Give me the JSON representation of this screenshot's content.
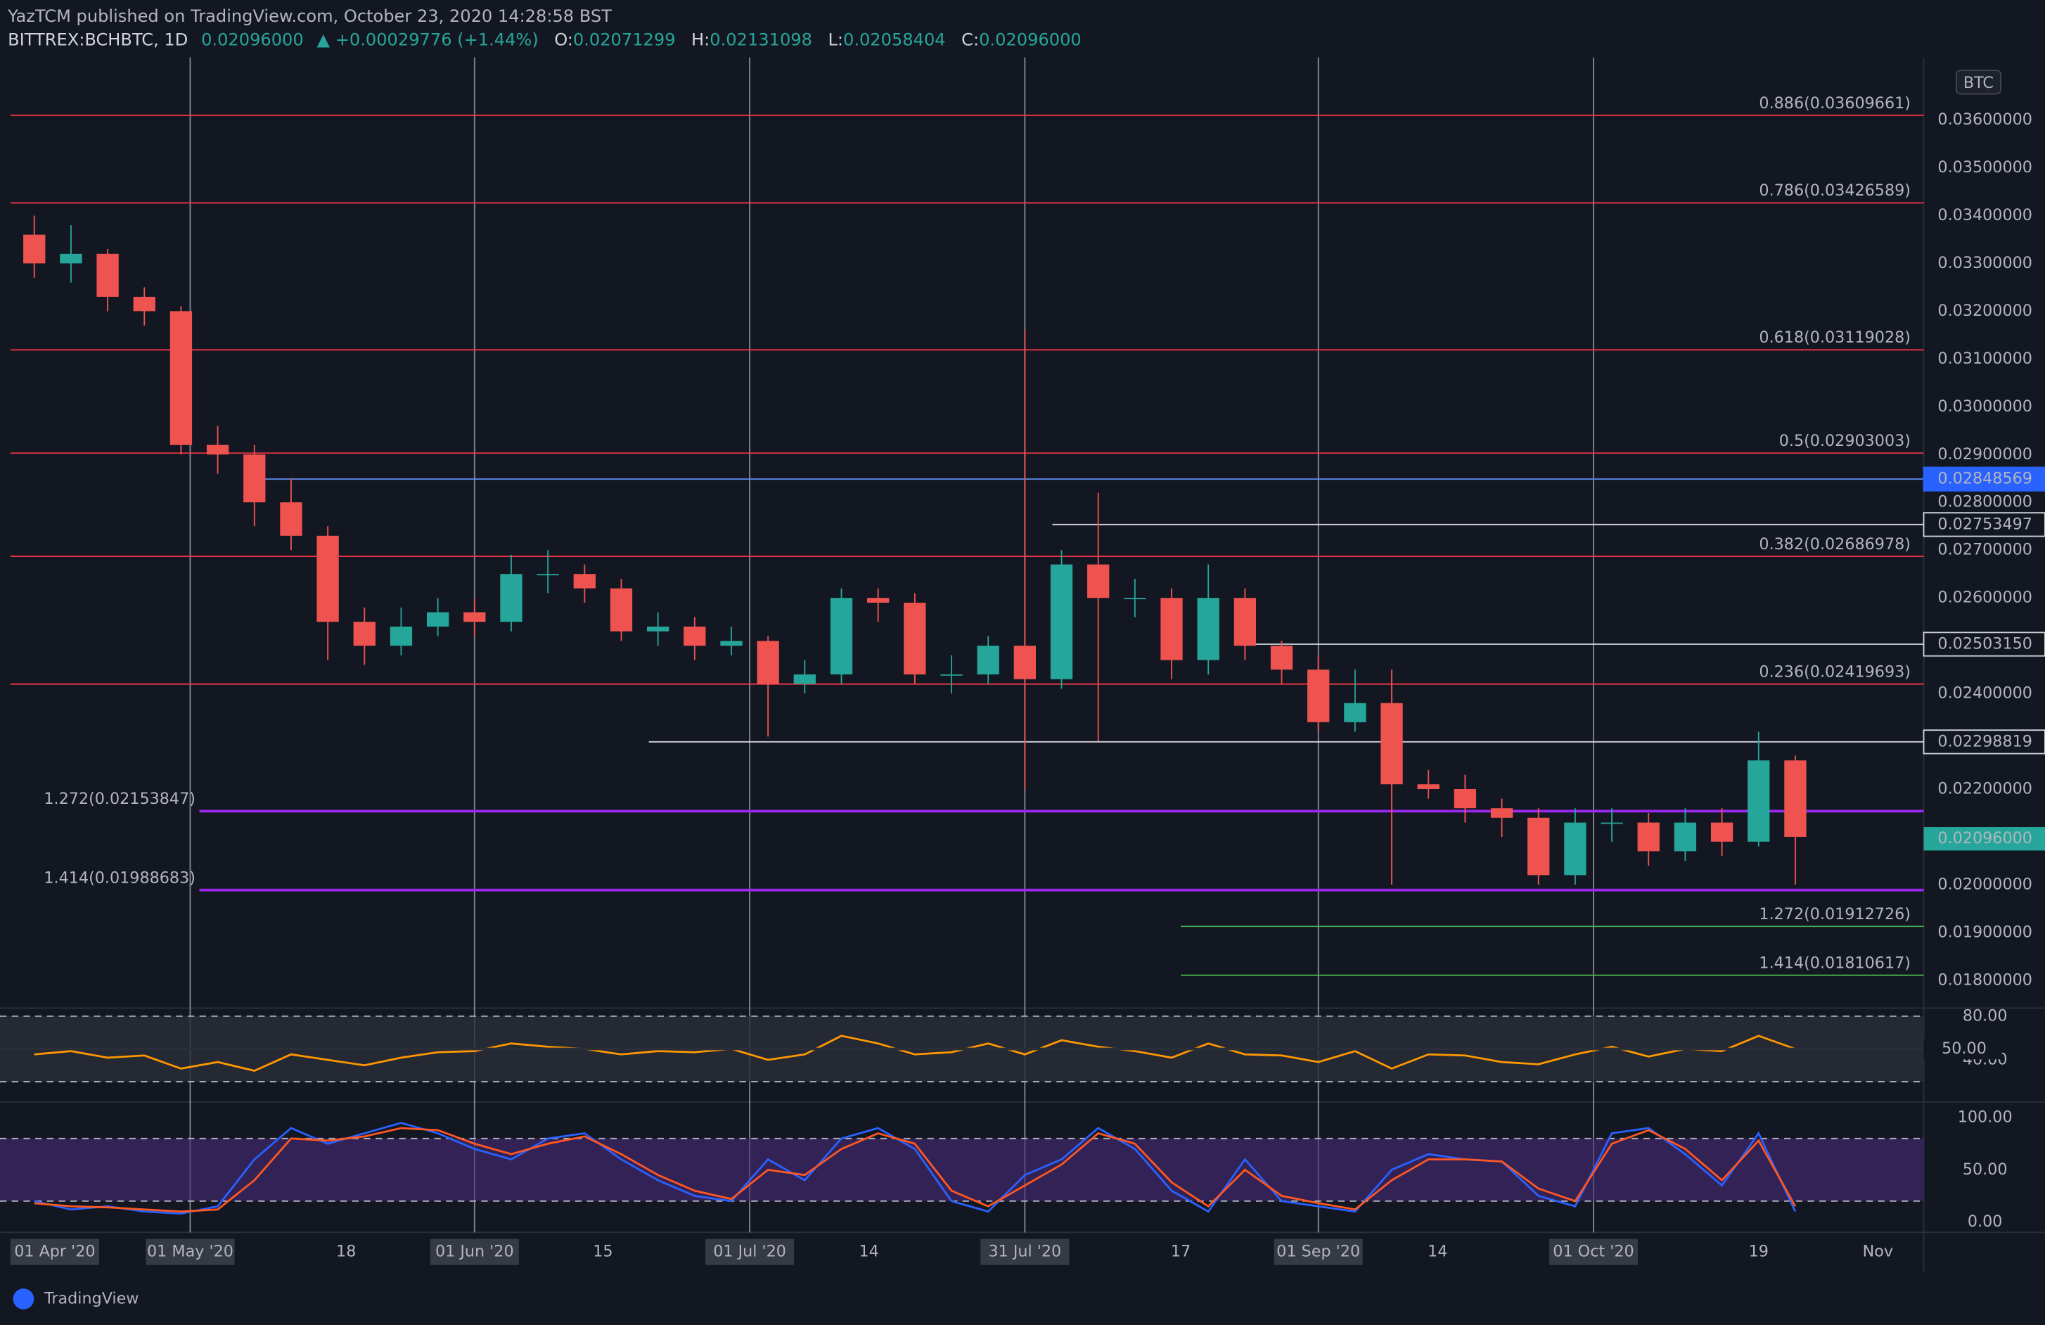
{
  "header": {
    "publisher": "YazTCM published on TradingView.com, October 23, 2020 14:28:58 BST",
    "symbol": "BITTREX:BCHBTC, 1D",
    "last": "0.02096000",
    "change": "▲ +0.00029776 (+1.44%)",
    "o_label": "O:",
    "o": "0.02071299",
    "h_label": "H:",
    "h": "0.02131098",
    "l_label": "L:",
    "l": "0.02058404",
    "c_label": "C:",
    "c": "0.02096000",
    "currency": "BTC",
    "brand": "TradingView"
  },
  "chart_data": [
    {
      "type": "candlestick",
      "up_color": "#26a69a",
      "down_color": "#ef5350",
      "x": [
        13,
        17,
        21,
        25,
        29,
        33,
        37,
        41,
        45,
        49,
        53,
        57,
        61,
        65,
        69,
        73,
        77,
        81,
        85,
        89,
        93,
        97,
        101,
        105,
        109,
        113,
        117,
        121,
        125,
        129,
        133,
        137,
        141,
        145,
        149,
        153,
        157,
        161,
        165,
        169,
        173,
        177,
        181,
        185,
        189,
        193,
        197,
        201,
        205
      ],
      "open": [
        0.0336,
        0.033,
        0.0332,
        0.0323,
        0.032,
        0.0292,
        0.029,
        0.028,
        0.0273,
        0.0255,
        0.025,
        0.0254,
        0.0257,
        0.0255,
        0.0265,
        0.0265,
        0.0262,
        0.0253,
        0.0254,
        0.025,
        0.0251,
        0.0242,
        0.0244,
        0.026,
        0.0259,
        0.0244,
        0.0244,
        0.025,
        0.0243,
        0.0267,
        0.026,
        0.026,
        0.0247,
        0.026,
        0.025,
        0.0245,
        0.0234,
        0.0238,
        0.0221,
        0.022,
        0.0216,
        0.0214,
        0.0202,
        0.0213,
        0.0213,
        0.0207,
        0.0213,
        0.0209,
        0.0226
      ],
      "high": [
        0.034,
        0.0338,
        0.0333,
        0.0325,
        0.0321,
        0.0296,
        0.0292,
        0.0285,
        0.0275,
        0.0258,
        0.0258,
        0.026,
        0.026,
        0.0269,
        0.027,
        0.0267,
        0.0264,
        0.0257,
        0.0256,
        0.0254,
        0.0252,
        0.0247,
        0.0262,
        0.0262,
        0.0261,
        0.0248,
        0.0252,
        0.0316,
        0.027,
        0.0282,
        0.0264,
        0.0262,
        0.0267,
        0.0262,
        0.0251,
        0.0248,
        0.0245,
        0.0245,
        0.0224,
        0.0223,
        0.0218,
        0.0216,
        0.0216,
        0.0216,
        0.0215,
        0.0216,
        0.0216,
        0.0232,
        0.0227
      ],
      "low": [
        0.0327,
        0.0326,
        0.032,
        0.0317,
        0.029,
        0.0286,
        0.0275,
        0.027,
        0.0247,
        0.0246,
        0.0248,
        0.0252,
        0.0252,
        0.0253,
        0.0261,
        0.0259,
        0.0251,
        0.025,
        0.0247,
        0.0248,
        0.0231,
        0.024,
        0.0242,
        0.0255,
        0.0242,
        0.024,
        0.0242,
        0.022,
        0.0241,
        0.023,
        0.0256,
        0.0243,
        0.0244,
        0.0247,
        0.0242,
        0.0232,
        0.0232,
        0.02,
        0.0218,
        0.0213,
        0.021,
        0.02,
        0.02,
        0.0209,
        0.0204,
        0.0205,
        0.0206,
        0.0208,
        0.02
      ],
      "close": [
        0.033,
        0.0332,
        0.0323,
        0.032,
        0.0292,
        0.029,
        0.028,
        0.0273,
        0.0255,
        0.025,
        0.0254,
        0.0257,
        0.0255,
        0.0265,
        0.0265,
        0.0262,
        0.0253,
        0.0254,
        0.025,
        0.0251,
        0.0242,
        0.0244,
        0.026,
        0.0259,
        0.0244,
        0.0244,
        0.025,
        0.0243,
        0.0267,
        0.026,
        0.026,
        0.0247,
        0.026,
        0.025,
        0.0245,
        0.0234,
        0.0238,
        0.0221,
        0.022,
        0.0216,
        0.0214,
        0.0202,
        0.0213,
        0.0213,
        0.0207,
        0.0213,
        0.0209,
        0.0226,
        0.021
      ],
      "xlim": [
        10.4,
        219
      ],
      "ylim": [
        0.0175,
        0.0372
      ],
      "xticks": [
        {
          "value": 0,
          "label": "01 Apr '20"
        },
        {
          "value": 30,
          "label": "01 May '20"
        },
        {
          "value": 47,
          "label": "18"
        },
        {
          "value": 61,
          "label": "01 Jun '20"
        },
        {
          "value": 75,
          "label": "15"
        },
        {
          "value": 91,
          "label": "01 Jul '20"
        },
        {
          "value": 104,
          "label": "14"
        },
        {
          "value": 121,
          "label": "31 Jul '20"
        },
        {
          "value": 138,
          "label": "17"
        },
        {
          "value": 153,
          "label": "01 Sep '20"
        },
        {
          "value": 166,
          "label": "14"
        },
        {
          "value": 183,
          "label": "01 Oct '20"
        },
        {
          "value": 201,
          "label": "19"
        },
        {
          "value": 214,
          "label": "Nov"
        }
      ],
      "yticks": [
        {
          "value": 0.018,
          "label": "0.01800000"
        },
        {
          "value": 0.019,
          "label": "0.01900000"
        },
        {
          "value": 0.02,
          "label": "0.02000000"
        },
        {
          "value": 0.022,
          "label": "0.02200000"
        },
        {
          "value": 0.024,
          "label": "0.02400000"
        },
        {
          "value": 0.026,
          "label": "0.02600000"
        },
        {
          "value": 0.027,
          "label": "0.02700000"
        },
        {
          "value": 0.028,
          "label": "0.02800000"
        },
        {
          "value": 0.029,
          "label": "0.02900000"
        },
        {
          "value": 0.03,
          "label": "0.03000000"
        },
        {
          "value": 0.031,
          "label": "0.03100000"
        },
        {
          "value": 0.032,
          "label": "0.03200000"
        },
        {
          "value": 0.033,
          "label": "0.03300000"
        },
        {
          "value": 0.034,
          "label": "0.03400000"
        },
        {
          "value": 0.035,
          "label": "0.03500000"
        },
        {
          "value": 0.036,
          "label": "0.03600000"
        }
      ],
      "levels": [
        {
          "value": 0.03609661,
          "color": "#f23645",
          "label": "0.886(0.03609661)"
        },
        {
          "value": 0.03426589,
          "color": "#f23645",
          "label": "0.786(0.03426589)"
        },
        {
          "value": 0.03119028,
          "color": "#f23645",
          "label": "0.618(0.03119028)"
        },
        {
          "value": 0.02903003,
          "color": "#f23645",
          "label": "0.5(0.02903003)"
        },
        {
          "value": 0.02686978,
          "color": "#f23645",
          "label": "0.382(0.02686978)"
        },
        {
          "value": 0.02419693,
          "color": "#f23645",
          "label": "0.236(0.02419693)"
        },
        {
          "value": 0.02848569,
          "color": "#5b8def",
          "from": 37,
          "price_tag": "0.02848569"
        },
        {
          "value": 0.02753497,
          "color": "#d1d4dc",
          "from": 124,
          "price_tag": "0.02753497"
        },
        {
          "value": 0.0250315,
          "color": "#d1d4dc",
          "from": 145,
          "price_tag": "0.02503150"
        },
        {
          "value": 0.02298819,
          "color": "#d1d4dc",
          "from": 80,
          "price_tag": "0.02298819"
        },
        {
          "value": 0.02153847,
          "color": "#9c27f0",
          "from": 31,
          "label": "1.272(0.02153847)"
        },
        {
          "value": 0.01988683,
          "color": "#9c27f0",
          "from": 31,
          "label": "1.414(0.01988683)"
        },
        {
          "value": 0.01912726,
          "color": "#4caf50",
          "from": 138,
          "label": "1.272(0.01912726)"
        },
        {
          "value": 0.01810617,
          "color": "#4caf50",
          "from": 138,
          "label": "1.414(0.01810617)"
        }
      ],
      "last_price": {
        "value": 0.02096,
        "label": "0.02096000",
        "color": "#26a69a"
      }
    },
    {
      "type": "line",
      "name": "rsi",
      "ylim": [
        5,
        85
      ],
      "bands": [
        20,
        80
      ],
      "yticks": [
        {
          "value": 80,
          "label": "80.00"
        },
        {
          "value": 40,
          "label": "40.00"
        }
      ],
      "last": {
        "value": 50,
        "label": "50.00"
      },
      "series": [
        {
          "color": "#ff9800",
          "values": [
            45,
            48,
            42,
            44,
            32,
            38,
            30,
            45,
            40,
            35,
            42,
            47,
            48,
            55,
            52,
            50,
            45,
            48,
            47,
            50,
            40,
            45,
            62,
            55,
            45,
            47,
            55,
            45,
            58,
            52,
            48,
            42,
            55,
            45,
            44,
            38,
            48,
            32,
            45,
            44,
            38,
            36,
            45,
            52,
            43,
            50,
            48,
            62,
            50
          ]
        }
      ]
    },
    {
      "type": "line",
      "name": "stoch-rsi",
      "ylim": [
        -10,
        115
      ],
      "bands": [
        20,
        80
      ],
      "yticks": [
        {
          "value": 100,
          "label": "100.00"
        },
        {
          "value": 50,
          "label": "50.00"
        },
        {
          "value": 0,
          "label": "0.00"
        }
      ],
      "series": [
        {
          "color": "#2962ff",
          "values": [
            20,
            12,
            15,
            10,
            8,
            15,
            60,
            90,
            75,
            85,
            95,
            85,
            70,
            60,
            80,
            85,
            60,
            40,
            25,
            20,
            60,
            40,
            80,
            90,
            70,
            20,
            10,
            45,
            60,
            90,
            70,
            30,
            10,
            60,
            20,
            15,
            10,
            50,
            65,
            60,
            58,
            25,
            15,
            85,
            90,
            65,
            35,
            85,
            10
          ]
        },
        {
          "color": "#ff5722",
          "values": [
            18,
            15,
            14,
            12,
            10,
            12,
            40,
            80,
            78,
            82,
            90,
            88,
            75,
            65,
            75,
            82,
            65,
            45,
            30,
            22,
            50,
            45,
            70,
            85,
            75,
            30,
            15,
            35,
            55,
            85,
            75,
            38,
            15,
            50,
            25,
            18,
            12,
            40,
            60,
            60,
            58,
            32,
            20,
            75,
            88,
            70,
            40,
            78,
            15
          ]
        }
      ]
    }
  ]
}
